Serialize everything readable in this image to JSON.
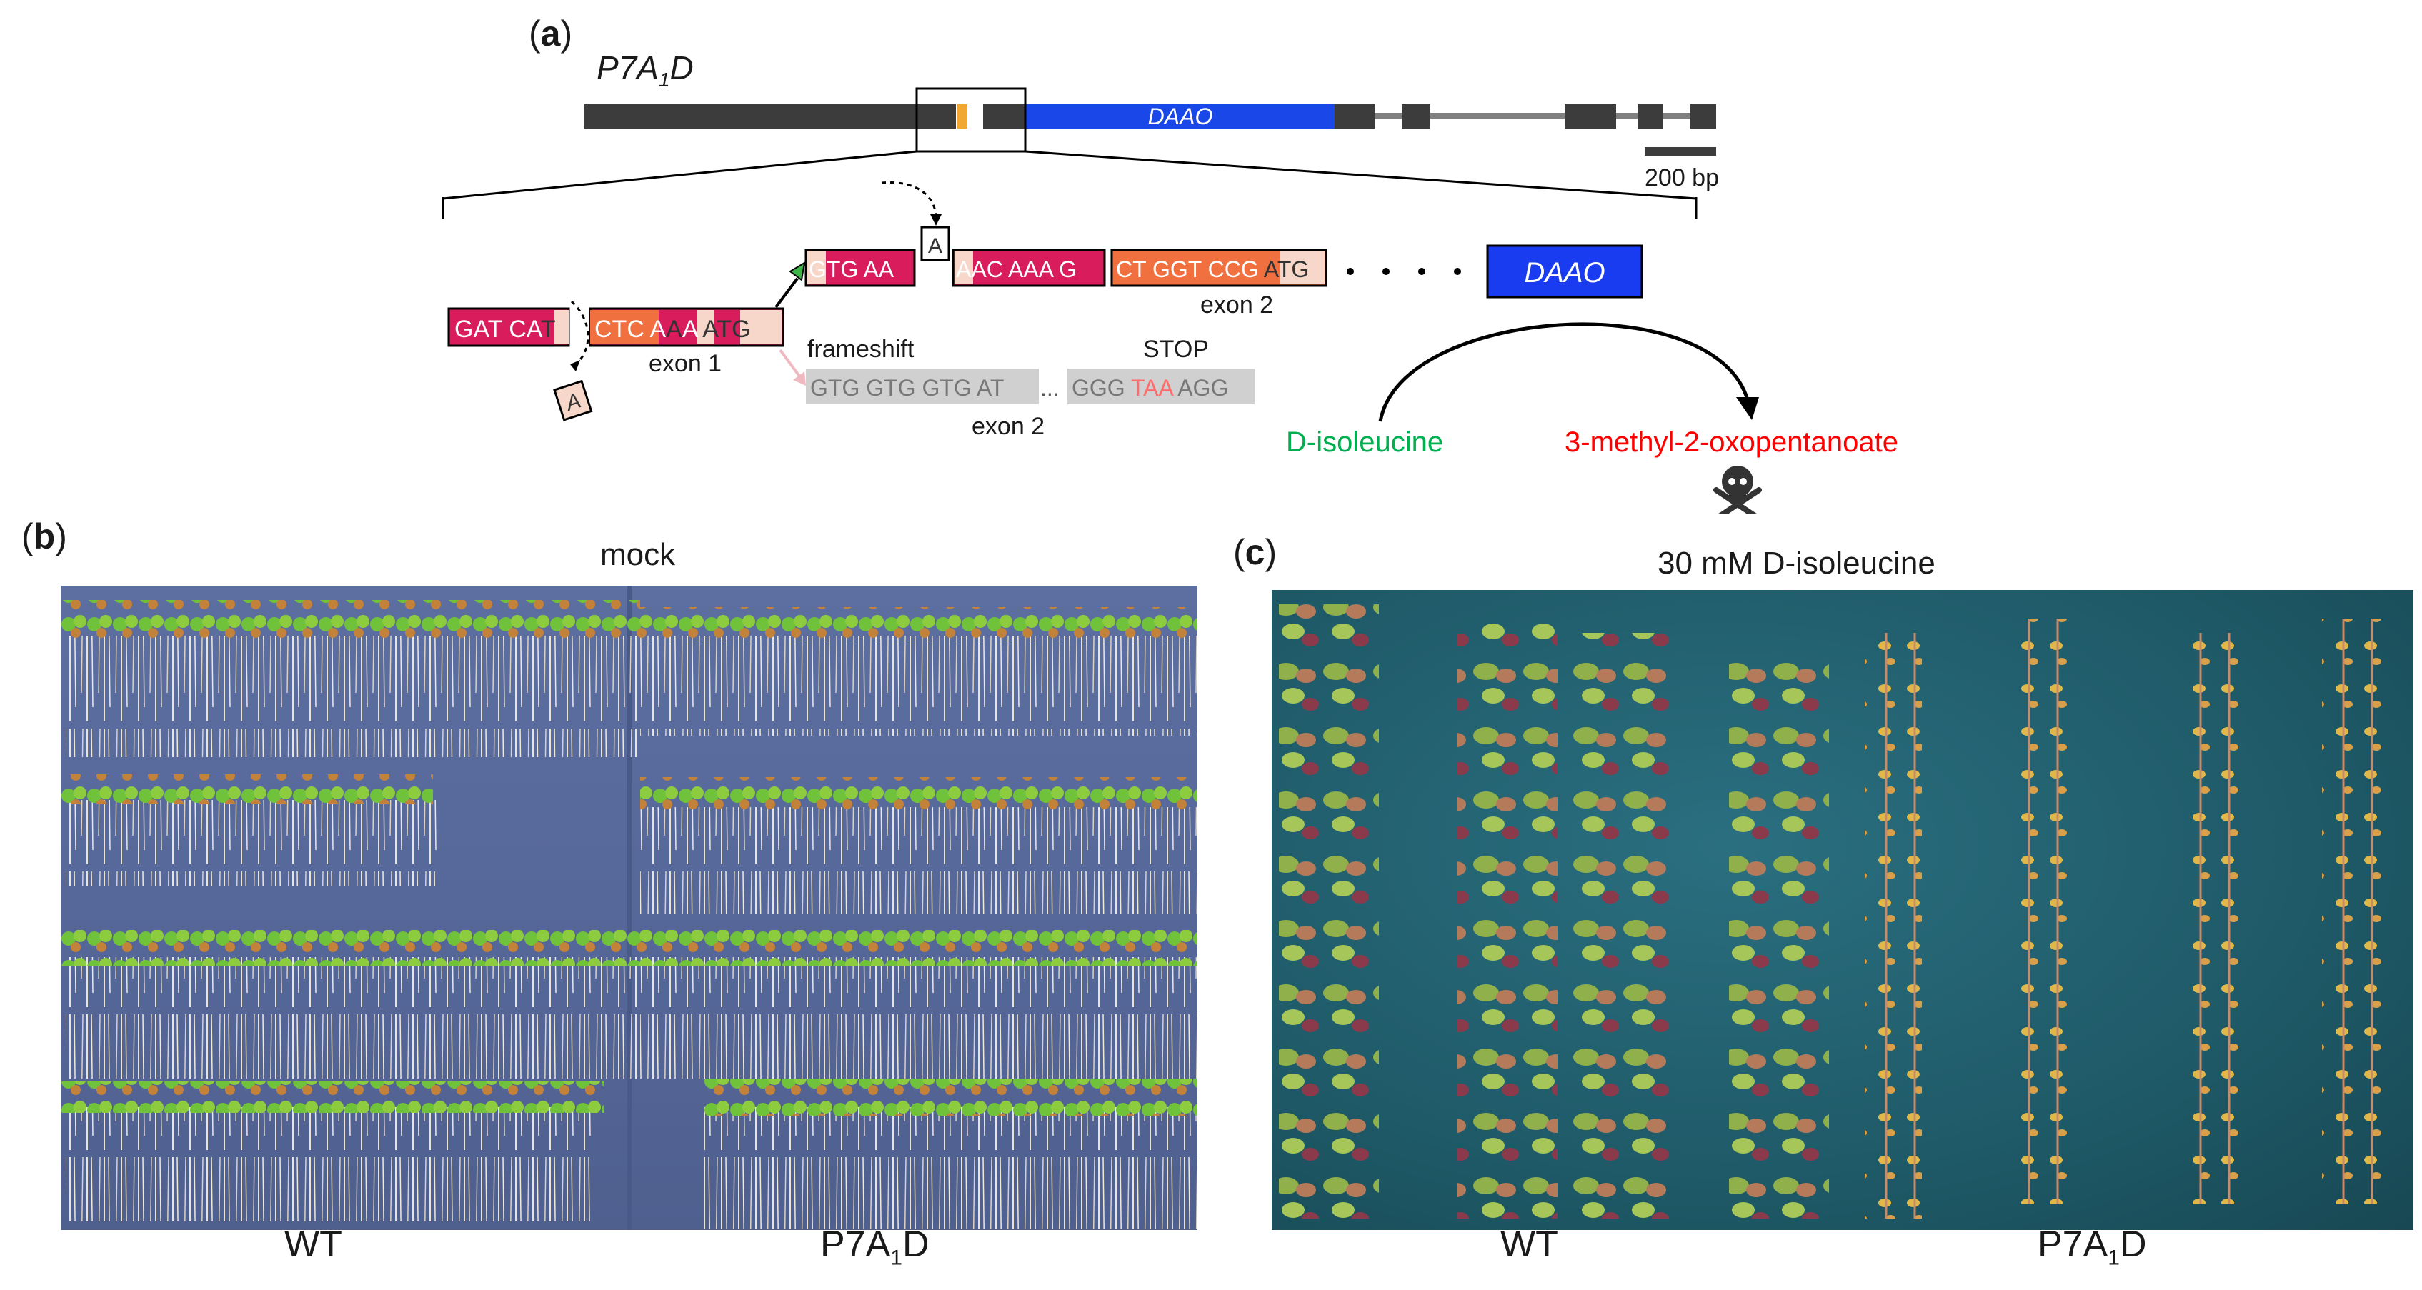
{
  "panel_a": {
    "letter": "a",
    "gene_name": "P7A",
    "gene_name_sub": "1",
    "gene_name_suffix": "D",
    "daao_label": "DAAO",
    "scale_bar": "200 bp",
    "exon1_seq": {
      "s1": "GAT CA",
      "s2": "T",
      "s3": "CTC A",
      "s4": "A",
      "s5": "A ",
      "s6": "ATG"
    },
    "exon1_label": "exon 1",
    "inserted_base": "A",
    "inserted_base_top": "A",
    "exon2_seqs": {
      "a": "GTG AA",
      "b": "AAC AAA G",
      "c": "CT GGT CCG ",
      "d": "ATG"
    },
    "exon2_label": "exon 2",
    "frameshift_label": "frameshift",
    "stop_label": "STOP",
    "frameshift_seq1": "GTG GTG GTG AT",
    "ellipsis": "...",
    "frameshift_seq2_pre": "GGG ",
    "frameshift_stop": "TAA",
    "frameshift_seq2_post": " AGG",
    "exon2_label_lower": "exon 2",
    "daao_box_label": "DAAO",
    "substrate": "D-isoleucine",
    "product": "3-methyl-2-oxopentanoate",
    "colors": {
      "substrate": "#00b050",
      "product": "#ff0000",
      "daao": "#1a3cf0",
      "stop": "#ff6b6b"
    }
  },
  "panel_b": {
    "letter": "b",
    "condition": "mock",
    "label_left": "WT",
    "label_right_pre": "P7A",
    "label_right_sub": "1",
    "label_right_post": "D"
  },
  "panel_c": {
    "letter": "c",
    "condition": "30 mM D-isoleucine",
    "label_left": "WT",
    "label_right_pre": "P7A",
    "label_right_sub": "1",
    "label_right_post": "D"
  }
}
